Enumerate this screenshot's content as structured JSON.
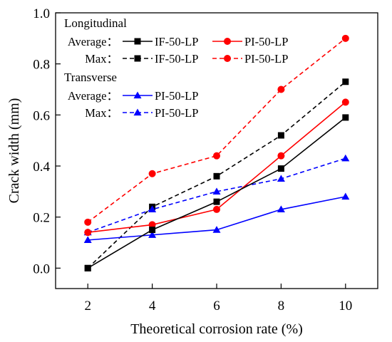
{
  "chart_data": {
    "type": "line",
    "xlabel": "Theoretical corrosion rate (%)",
    "ylabel": "Crack width (mm)",
    "xlim": [
      1,
      11
    ],
    "ylim": [
      -0.08,
      1.0
    ],
    "x_ticks": [
      2,
      4,
      6,
      8,
      10
    ],
    "y_ticks": [
      0.0,
      0.2,
      0.4,
      0.6,
      0.8,
      1.0
    ],
    "x_tick_labels": [
      "2",
      "4",
      "6",
      "8",
      "10"
    ],
    "y_tick_labels": [
      "0.0",
      "0.2",
      "0.4",
      "0.6",
      "0.8",
      "1.0"
    ],
    "grid": false,
    "legend_placement": "top-left",
    "legend_groups": [
      {
        "title": "Longitudinal",
        "rows": [
          {
            "prefix": "Average：",
            "series": [
              "long-avg-if",
              "long-avg-pi"
            ]
          },
          {
            "prefix": "Max：",
            "series": [
              "long-max-if",
              "long-max-pi"
            ]
          }
        ]
      },
      {
        "title": "Transverse",
        "rows": [
          {
            "prefix": "Average：",
            "series": [
              "trans-avg-pi"
            ]
          },
          {
            "prefix": "Max：",
            "series": [
              "trans-max-pi"
            ]
          }
        ]
      }
    ],
    "series": [
      {
        "id": "long-avg-if",
        "name": "IF-50-LP",
        "color": "#000000",
        "dash": "solid",
        "marker": "square",
        "x": [
          2,
          4,
          6,
          8,
          10
        ],
        "y": [
          0.0,
          0.15,
          0.26,
          0.39,
          0.59
        ]
      },
      {
        "id": "long-avg-pi",
        "name": "PI-50-LP",
        "color": "#ff0000",
        "dash": "solid",
        "marker": "circle",
        "x": [
          2,
          4,
          6,
          8,
          10
        ],
        "y": [
          0.14,
          0.17,
          0.23,
          0.44,
          0.65
        ]
      },
      {
        "id": "long-max-if",
        "name": "IF-50-LP",
        "color": "#000000",
        "dash": "dashed",
        "marker": "square",
        "x": [
          2,
          4,
          6,
          8,
          10
        ],
        "y": [
          0.0,
          0.24,
          0.36,
          0.52,
          0.73
        ]
      },
      {
        "id": "long-max-pi",
        "name": "PI-50-LP",
        "color": "#ff0000",
        "dash": "dashed",
        "marker": "circle",
        "x": [
          2,
          4,
          6,
          8,
          10
        ],
        "y": [
          0.18,
          0.37,
          0.44,
          0.7,
          0.9
        ]
      },
      {
        "id": "trans-avg-pi",
        "name": "PI-50-LP",
        "color": "#0000ff",
        "dash": "solid",
        "marker": "triangle",
        "x": [
          2,
          4,
          6,
          8,
          10
        ],
        "y": [
          0.11,
          0.13,
          0.15,
          0.23,
          0.28
        ]
      },
      {
        "id": "trans-max-pi",
        "name": "PI-50-LP",
        "color": "#0000ff",
        "dash": "dashed",
        "marker": "triangle",
        "x": [
          2,
          4,
          6,
          8,
          10
        ],
        "y": [
          0.14,
          0.23,
          0.3,
          0.35,
          0.43
        ]
      }
    ]
  }
}
